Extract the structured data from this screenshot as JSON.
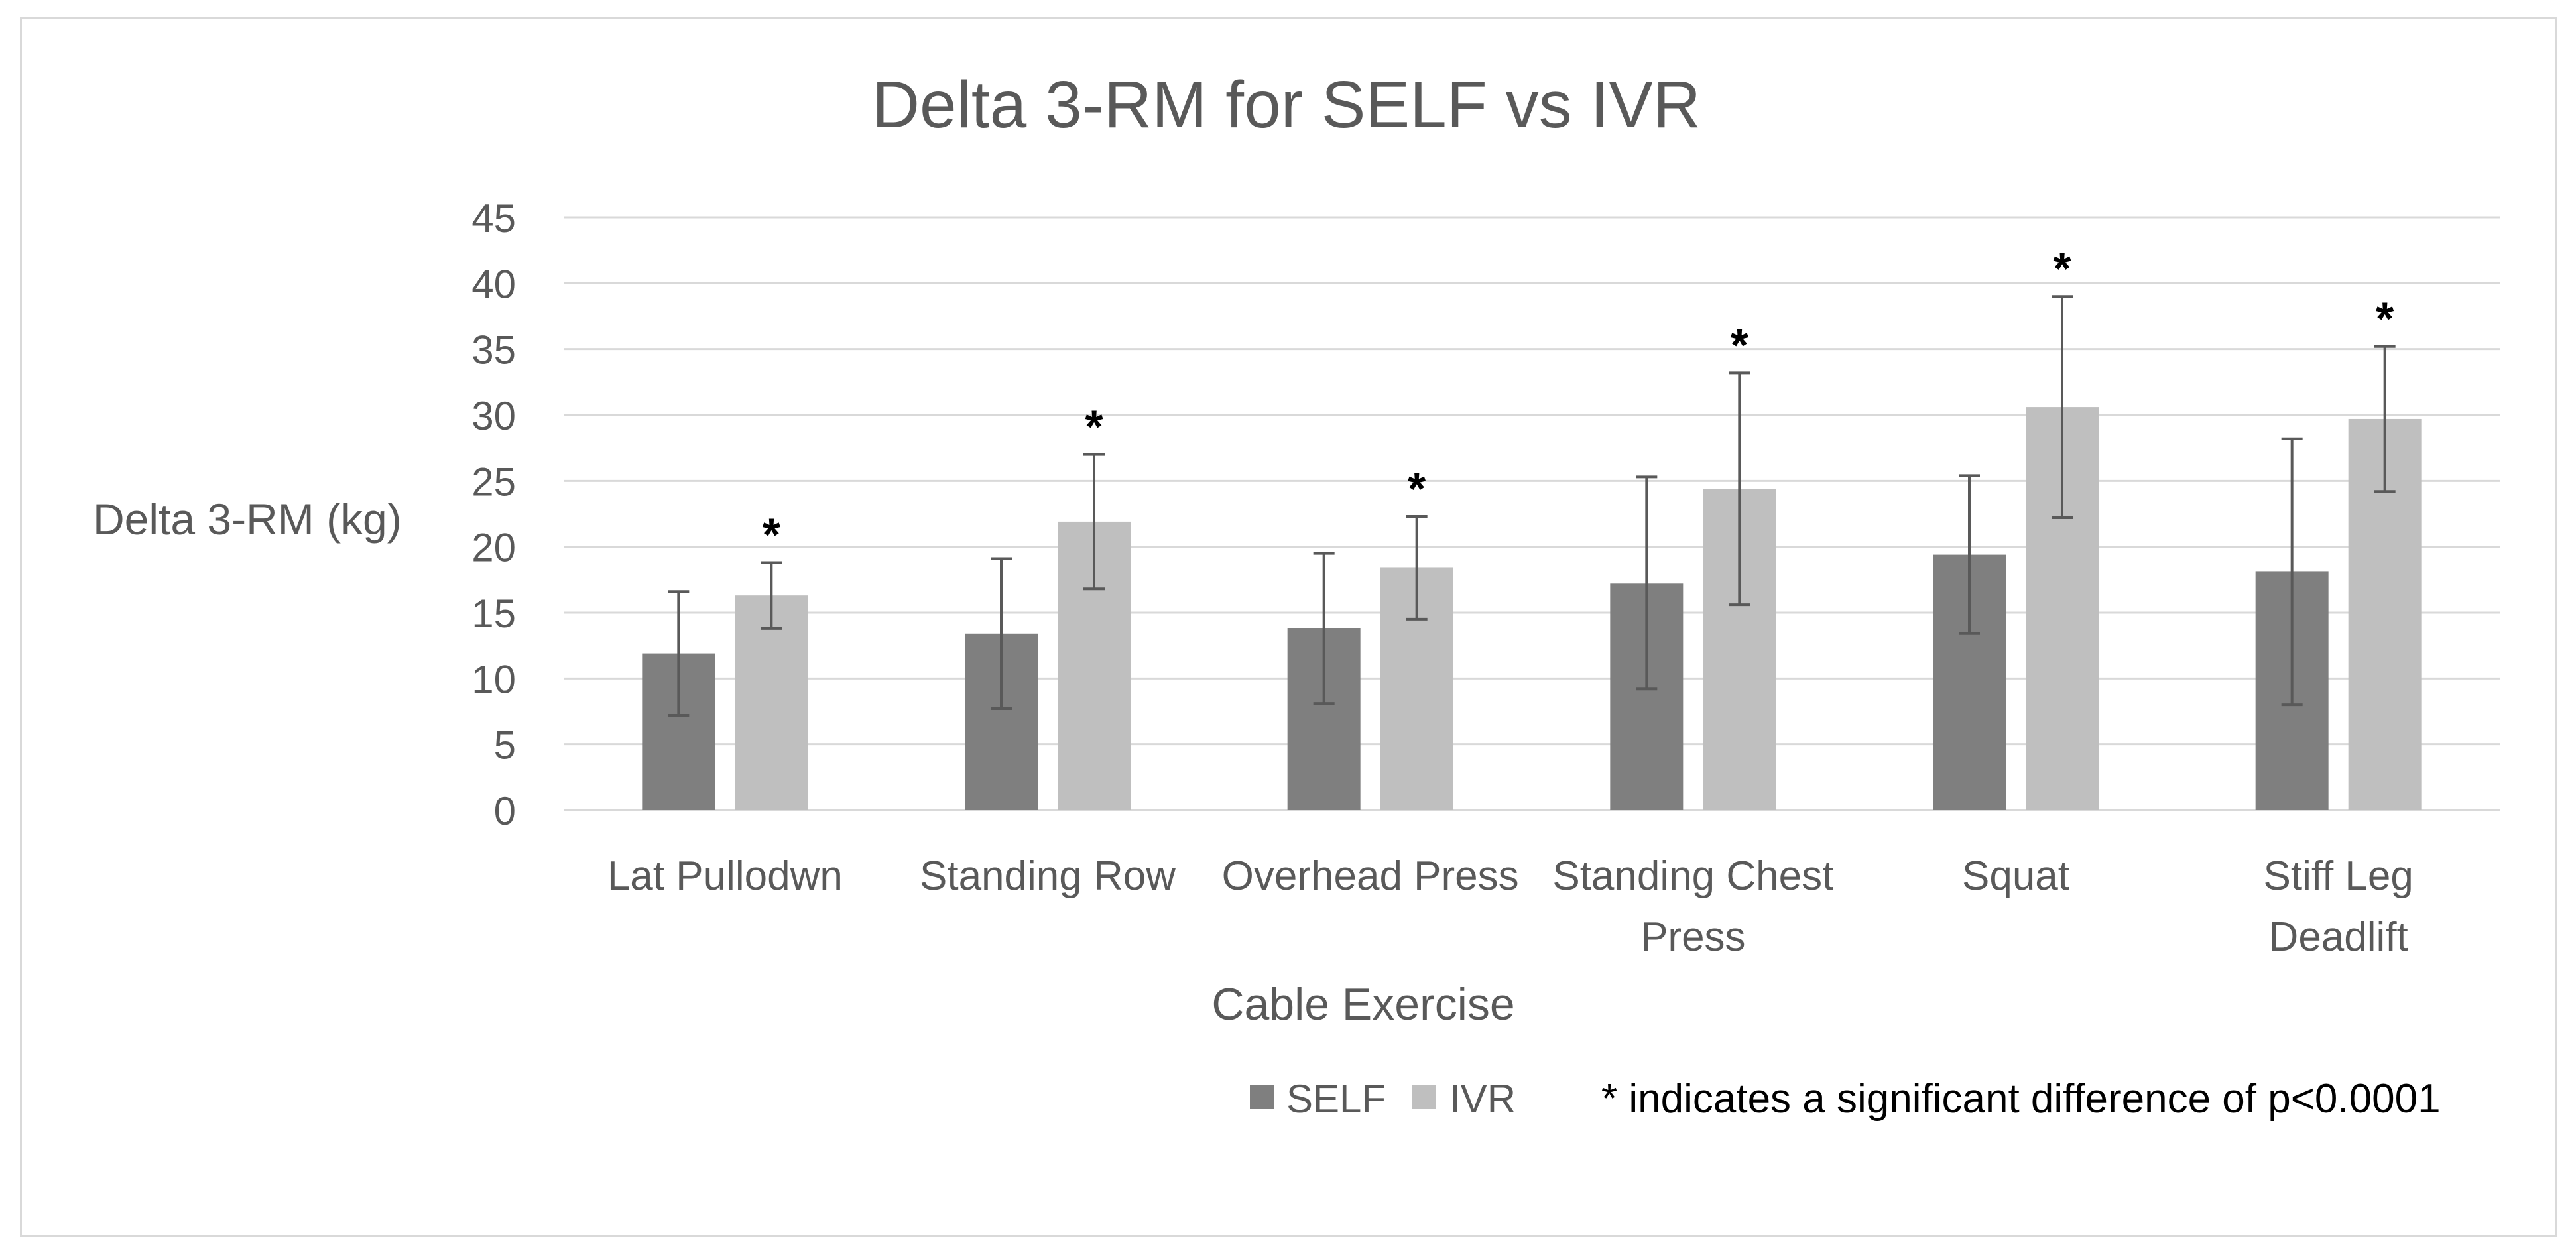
{
  "chart_data": {
    "type": "bar",
    "title": "Delta 3-RM for SELF vs IVR",
    "xlabel": "Cable Exercise",
    "ylabel": "Delta 3-RM (kg)",
    "ylim": [
      0,
      45
    ],
    "yticks": [
      "0",
      "5",
      "10",
      "15",
      "20",
      "25",
      "30",
      "35",
      "40",
      "45"
    ],
    "categories": [
      [
        "Lat Pullodwn"
      ],
      [
        "Standing Row"
      ],
      [
        "Overhead Press"
      ],
      [
        "Standing Chest",
        "Press"
      ],
      [
        "Squat"
      ],
      [
        "Stiff Leg",
        "Deadlift"
      ]
    ],
    "series": [
      {
        "name": "SELF",
        "color": "#7f7f7f",
        "values": [
          11.9,
          13.4,
          13.8,
          17.2,
          19.4,
          18.1
        ],
        "error_low": [
          7.2,
          7.7,
          8.1,
          9.2,
          13.4,
          8.0
        ],
        "error_high": [
          16.6,
          19.1,
          19.5,
          25.3,
          25.4,
          28.2
        ]
      },
      {
        "name": "IVR",
        "color": "#bfbfbf",
        "values": [
          16.3,
          21.9,
          18.4,
          24.4,
          30.6,
          29.7
        ],
        "error_low": [
          13.8,
          16.8,
          14.5,
          15.6,
          22.2,
          24.2
        ],
        "error_high": [
          18.8,
          27.0,
          22.3,
          33.2,
          39.0,
          35.2
        ]
      }
    ],
    "significance_marker": "*",
    "significant": [
      true,
      true,
      true,
      true,
      true,
      true
    ],
    "note": "* indicates a significant difference of p<0.0001",
    "grid": true,
    "legend": "bottom"
  }
}
